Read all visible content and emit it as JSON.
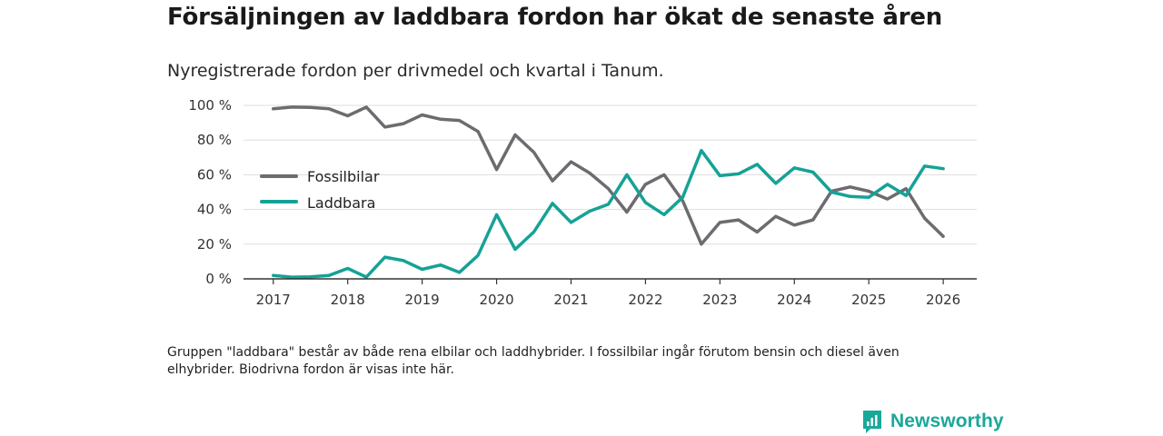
{
  "header": {
    "title": "Försäljningen av laddbara fordon har ökat de senaste åren",
    "subtitle": "Nyregistrerade fordon per drivmedel och kvartal i Tanum."
  },
  "footer": {
    "note": "Gruppen \"laddbara\" består av både rena elbilar och laddhybrider. I fossilbilar ingår förutom bensin och diesel även elhybrider. Biodrivna fordon är visas inte här.",
    "brand": "Newsworthy",
    "brand_icon": "newsworthy-logo-icon"
  },
  "colors": {
    "fossil": "#6d6b70",
    "laddbara": "#15a296",
    "grid": "#dddddd",
    "axis": "#333333",
    "brand": "#1aa89a"
  },
  "chart_data": {
    "type": "line",
    "title": "Försäljningen av laddbara fordon har ökat de senaste åren",
    "subtitle": "Nyregistrerade fordon per drivmedel och kvartal i Tanum.",
    "xlabel": "",
    "ylabel": "",
    "x": [
      2017.0,
      2017.25,
      2017.5,
      2017.75,
      2018.0,
      2018.25,
      2018.5,
      2018.75,
      2019.0,
      2019.25,
      2019.5,
      2019.75,
      2020.0,
      2020.25,
      2020.5,
      2020.75,
      2021.0,
      2021.25,
      2021.5,
      2021.75,
      2022.0,
      2022.25,
      2022.5,
      2022.75,
      2023.0,
      2023.25,
      2023.5,
      2023.75,
      2024.0,
      2024.25,
      2024.5,
      2024.75,
      2025.0,
      2025.25,
      2025.5,
      2025.75,
      2026.0
    ],
    "xlim": [
      2016.6,
      2026.45
    ],
    "ylim": [
      0,
      100
    ],
    "x_ticks": [
      2017,
      2018,
      2019,
      2020,
      2021,
      2022,
      2023,
      2024,
      2025,
      2026
    ],
    "x_tick_labels": [
      "2017",
      "2018",
      "2019",
      "2020",
      "2021",
      "2022",
      "2023",
      "2024",
      "2025",
      "2026"
    ],
    "y_ticks": [
      0,
      20,
      40,
      60,
      80,
      100
    ],
    "y_tick_labels": [
      "0 %",
      "20 %",
      "40 %",
      "60 %",
      "80 %",
      "100 %"
    ],
    "grid": true,
    "legend_position": "left-middle",
    "series": [
      {
        "name": "Fossilbilar",
        "color": "#6d6b70",
        "values": [
          98,
          99,
          98.8,
          98,
          94,
          99,
          87.5,
          89.5,
          94.5,
          92,
          91.3,
          85,
          63,
          83,
          73,
          56.5,
          67.5,
          61,
          52,
          38.5,
          54.5,
          60,
          45,
          20,
          32.5,
          34,
          27,
          36,
          31,
          34,
          50.5,
          53,
          50.5,
          46,
          52,
          35,
          24.5
        ]
      },
      {
        "name": "Laddbara",
        "color": "#15a296",
        "values": [
          2,
          1,
          1.2,
          2,
          6,
          1,
          12.5,
          10.5,
          5.5,
          8,
          3.7,
          13.5,
          37,
          17,
          27,
          43.5,
          32.5,
          39,
          43,
          60,
          44,
          37,
          47,
          74,
          59.5,
          60.5,
          66,
          55,
          64,
          61.5,
          50,
          47.5,
          47,
          54.5,
          48,
          65,
          63.5
        ]
      }
    ]
  }
}
